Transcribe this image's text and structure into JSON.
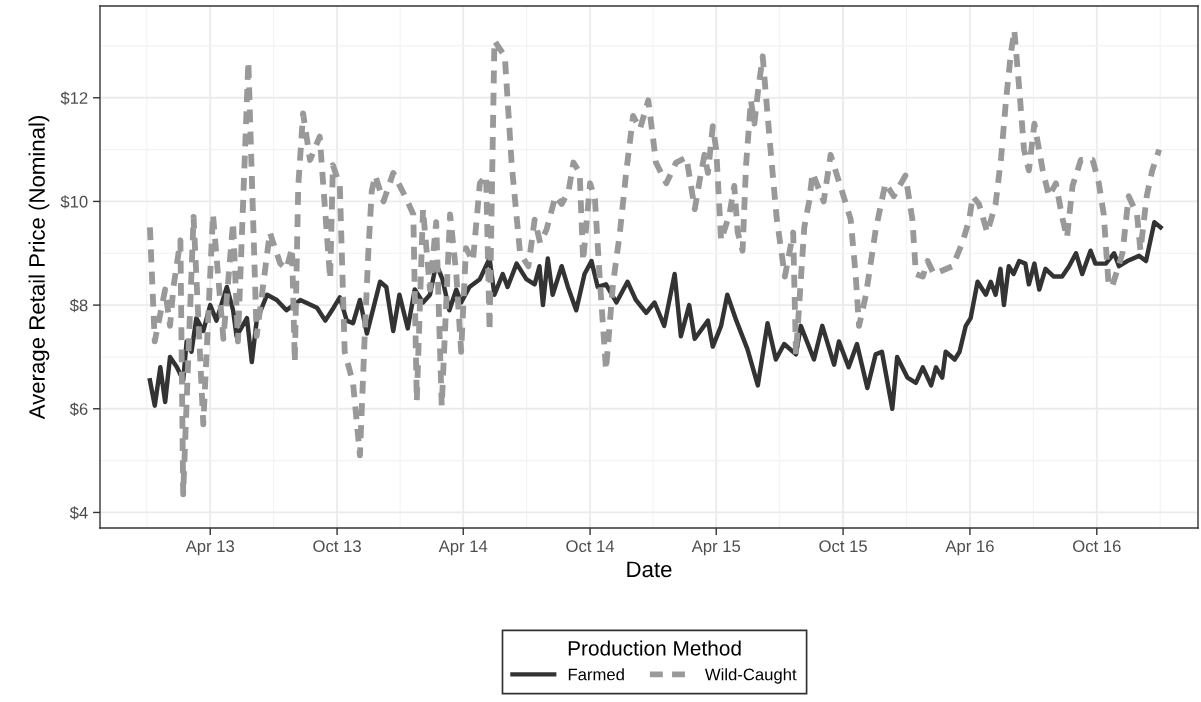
{
  "chart_data": {
    "type": "line",
    "xlabel": "Date",
    "ylabel": "Average Retail Price (Nominal)",
    "legend_title": "Production Method",
    "legend": "bottom",
    "grid": true,
    "xlim": [
      "2012-10-24",
      "2017-02-24"
    ],
    "xticks": [
      {
        "value": "2013-04-01",
        "label": "Apr 13"
      },
      {
        "value": "2013-10-01",
        "label": "Oct 13"
      },
      {
        "value": "2014-04-01",
        "label": "Apr 14"
      },
      {
        "value": "2014-10-01",
        "label": "Oct 14"
      },
      {
        "value": "2015-04-01",
        "label": "Apr 15"
      },
      {
        "value": "2015-10-01",
        "label": "Oct 15"
      },
      {
        "value": "2016-04-01",
        "label": "Apr 16"
      },
      {
        "value": "2016-10-01",
        "label": "Oct 16"
      }
    ],
    "ylim": [
      3.7,
      13.77
    ],
    "yticks": [
      {
        "value": 4,
        "label": "$4"
      },
      {
        "value": 6,
        "label": "$6"
      },
      {
        "value": 8,
        "label": "$8"
      },
      {
        "value": 10,
        "label": "$10"
      },
      {
        "value": 12,
        "label": "$12"
      }
    ],
    "series": [
      {
        "name": "Farmed",
        "color": "#333333",
        "line_style": "solid",
        "x": [
          "2013-01-04",
          "2013-01-11",
          "2013-01-19",
          "2013-01-26",
          "2013-02-02",
          "2013-02-12",
          "2013-02-21",
          "2013-02-26",
          "2013-03-05",
          "2013-03-12",
          "2013-03-22",
          "2013-04-01",
          "2013-04-10",
          "2013-04-25",
          "2013-05-04",
          "2013-05-09",
          "2013-05-24",
          "2013-05-31",
          "2013-06-07",
          "2013-06-22",
          "2013-07-06",
          "2013-07-20",
          "2013-08-09",
          "2013-09-02",
          "2013-09-14",
          "2013-09-26",
          "2013-10-05",
          "2013-10-15",
          "2013-10-24",
          "2013-11-03",
          "2013-11-13",
          "2013-12-02",
          "2013-12-11",
          "2013-12-21",
          "2013-12-30",
          "2014-01-11",
          "2014-01-21",
          "2014-02-02",
          "2014-02-12",
          "2014-02-21",
          "2014-03-02",
          "2014-03-12",
          "2014-03-22",
          "2014-03-29",
          "2014-04-10",
          "2014-04-25",
          "2014-05-09",
          "2014-05-16",
          "2014-05-28",
          "2014-06-04",
          "2014-06-17",
          "2014-07-01",
          "2014-07-13",
          "2014-07-20",
          "2014-07-25",
          "2014-08-01",
          "2014-08-08",
          "2014-08-21",
          "2014-08-30",
          "2014-09-11",
          "2014-09-23",
          "2014-10-03",
          "2014-10-12",
          "2014-10-24",
          "2014-11-08",
          "2014-11-24",
          "2014-12-06",
          "2014-12-21",
          "2015-01-02",
          "2015-01-16",
          "2015-01-31",
          "2015-02-09",
          "2015-02-21",
          "2015-03-01",
          "2015-03-20",
          "2015-03-27",
          "2015-04-08",
          "2015-04-17",
          "2015-04-30",
          "2015-05-16",
          "2015-05-31",
          "2015-06-14",
          "2015-06-26",
          "2015-07-08",
          "2015-07-25",
          "2015-08-01",
          "2015-08-20",
          "2015-09-01",
          "2015-09-18",
          "2015-09-25",
          "2015-10-09",
          "2015-10-21",
          "2015-11-05",
          "2015-11-17",
          "2015-11-26",
          "2015-12-11",
          "2015-12-18",
          "2016-01-02",
          "2016-01-14",
          "2016-01-24",
          "2016-02-05",
          "2016-02-12",
          "2016-02-21",
          "2016-02-26",
          "2016-03-10",
          "2016-03-17",
          "2016-03-26",
          "2016-04-02",
          "2016-04-12",
          "2016-04-24",
          "2016-05-01",
          "2016-05-08",
          "2016-05-15",
          "2016-05-20",
          "2016-05-27",
          "2016-06-03",
          "2016-06-11",
          "2016-06-20",
          "2016-06-25",
          "2016-07-03",
          "2016-07-10",
          "2016-07-19",
          "2016-07-31",
          "2016-08-12",
          "2016-08-22",
          "2016-09-01",
          "2016-09-10",
          "2016-09-22",
          "2016-09-29",
          "2016-10-14",
          "2016-10-26",
          "2016-11-02",
          "2016-11-14",
          "2016-12-01",
          "2016-12-11",
          "2016-12-23",
          "2017-01-01"
        ],
        "values": [
          6.55,
          6.06,
          6.8,
          6.13,
          7.0,
          6.8,
          6.55,
          7.3,
          7.1,
          7.75,
          7.5,
          8.0,
          7.7,
          8.35,
          7.9,
          7.4,
          7.75,
          6.9,
          7.7,
          8.2,
          8.1,
          7.9,
          8.1,
          7.95,
          7.7,
          7.95,
          8.15,
          7.7,
          7.65,
          8.1,
          7.45,
          8.45,
          8.35,
          7.5,
          8.2,
          7.55,
          8.3,
          8.05,
          8.2,
          8.8,
          8.5,
          7.9,
          8.3,
          8.05,
          8.35,
          8.5,
          8.9,
          8.2,
          8.6,
          8.35,
          8.8,
          8.5,
          8.4,
          8.75,
          8.0,
          8.9,
          8.2,
          8.75,
          8.35,
          7.9,
          8.6,
          8.85,
          8.35,
          8.4,
          8.05,
          8.45,
          8.1,
          7.85,
          8.05,
          7.6,
          8.6,
          7.4,
          8.0,
          7.35,
          7.7,
          7.2,
          7.6,
          8.2,
          7.7,
          7.15,
          6.45,
          7.65,
          6.95,
          7.25,
          7.05,
          7.6,
          6.95,
          7.6,
          6.85,
          7.3,
          6.8,
          7.25,
          6.4,
          7.05,
          7.1,
          6.0,
          7.0,
          6.6,
          6.5,
          6.8,
          6.45,
          6.8,
          6.6,
          7.1,
          6.95,
          7.1,
          7.6,
          7.75,
          8.45,
          8.2,
          8.45,
          8.2,
          8.7,
          8.0,
          8.75,
          8.6,
          8.85,
          8.8,
          8.4,
          8.8,
          8.3,
          8.7,
          8.55,
          8.55,
          8.75,
          9.0,
          8.6,
          9.05,
          8.8,
          8.8,
          9.0,
          8.75,
          8.85,
          8.95,
          8.85,
          9.6,
          9.5
        ]
      },
      {
        "name": "Wild-Caught",
        "color": "#999999",
        "line_style": "dashed",
        "x": [
          "2013-01-04",
          "2013-01-11",
          "2013-01-26",
          "2013-02-02",
          "2013-02-07",
          "2013-02-17",
          "2013-02-21",
          "2013-03-08",
          "2013-03-22",
          "2013-04-05",
          "2013-04-20",
          "2013-05-04",
          "2013-05-11",
          "2013-05-26",
          "2013-06-07",
          "2013-06-26",
          "2013-07-11",
          "2013-07-20",
          "2013-07-28",
          "2013-08-01",
          "2013-08-06",
          "2013-08-13",
          "2013-08-23",
          "2013-09-06",
          "2013-09-21",
          "2013-09-25",
          "2013-10-05",
          "2013-10-12",
          "2013-10-24",
          "2013-11-03",
          "2013-11-10",
          "2013-11-15",
          "2013-11-20",
          "2013-11-25",
          "2013-12-07",
          "2013-12-21",
          "2014-01-09",
          "2014-01-19",
          "2014-01-24",
          "2014-02-02",
          "2014-02-12",
          "2014-02-21",
          "2014-03-01",
          "2014-03-13",
          "2014-03-22",
          "2014-03-29",
          "2014-04-05",
          "2014-04-15",
          "2014-04-25",
          "2014-05-04",
          "2014-05-09",
          "2014-05-16",
          "2014-05-31",
          "2014-06-10",
          "2014-06-22",
          "2014-07-04",
          "2014-07-13",
          "2014-07-21",
          "2014-07-30",
          "2014-08-12",
          "2014-08-21",
          "2014-08-31",
          "2014-09-07",
          "2014-09-16",
          "2014-09-21",
          "2014-10-01",
          "2014-10-08",
          "2014-10-15",
          "2014-10-24",
          "2014-11-03",
          "2014-11-13",
          "2014-11-22",
          "2014-12-02",
          "2014-12-12",
          "2014-12-24",
          "2014-12-31",
          "2015-01-04",
          "2015-01-19",
          "2015-02-02",
          "2015-02-17",
          "2015-03-01",
          "2015-03-08",
          "2015-03-15",
          "2015-03-20",
          "2015-03-27",
          "2015-04-01",
          "2015-04-08",
          "2015-04-20",
          "2015-04-27",
          "2015-05-02",
          "2015-05-09",
          "2015-05-14",
          "2015-05-21",
          "2015-05-26",
          "2015-05-31",
          "2015-06-07",
          "2015-06-17",
          "2015-06-27",
          "2015-07-09",
          "2015-07-21",
          "2015-07-25",
          "2015-08-06",
          "2015-08-13",
          "2015-08-18",
          "2015-09-03",
          "2015-09-13",
          "2015-09-27",
          "2015-10-12",
          "2015-10-19",
          "2015-10-24",
          "2015-11-03",
          "2015-11-17",
          "2015-12-01",
          "2015-12-13",
          "2015-12-30",
          "2016-01-09",
          "2016-01-14",
          "2016-01-24",
          "2016-01-31",
          "2016-02-09",
          "2016-03-07",
          "2016-03-21",
          "2016-03-31",
          "2016-04-05",
          "2016-04-14",
          "2016-04-26",
          "2016-05-08",
          "2016-05-16",
          "2016-05-23",
          "2016-05-30",
          "2016-06-04",
          "2016-06-11",
          "2016-06-18",
          "2016-06-25",
          "2016-07-03",
          "2016-07-15",
          "2016-07-24",
          "2016-08-03",
          "2016-08-12",
          "2016-08-19",
          "2016-08-27",
          "2016-09-08",
          "2016-09-25",
          "2016-10-04",
          "2016-10-11",
          "2016-10-18",
          "2016-10-23",
          "2016-11-07",
          "2016-11-16",
          "2016-11-28",
          "2016-12-03",
          "2016-12-12",
          "2016-12-20",
          "2016-12-30"
        ],
        "values": [
          9.5,
          7.3,
          8.3,
          7.6,
          8.35,
          9.25,
          4.35,
          9.7,
          5.7,
          9.75,
          7.35,
          9.6,
          7.3,
          12.7,
          7.4,
          9.4,
          8.8,
          8.7,
          9.1,
          6.9,
          10.3,
          11.7,
          10.8,
          11.25,
          8.5,
          10.7,
          10.3,
          7.1,
          6.5,
          5.1,
          7.45,
          9.0,
          10.2,
          10.5,
          10.0,
          10.55,
          10.05,
          9.75,
          6.15,
          9.85,
          8.3,
          9.6,
          6.05,
          9.75,
          8.6,
          7.1,
          9.1,
          8.85,
          10.35,
          10.5,
          7.5,
          13.1,
          12.8,
          10.7,
          9.0,
          8.75,
          9.65,
          9.2,
          9.45,
          10.1,
          9.95,
          10.2,
          10.75,
          10.55,
          8.85,
          10.35,
          10.05,
          8.5,
          6.75,
          8.4,
          9.4,
          10.55,
          11.65,
          11.4,
          11.95,
          11.2,
          10.75,
          10.35,
          10.75,
          10.85,
          9.85,
          10.4,
          10.9,
          10.55,
          11.45,
          11.0,
          9.25,
          9.75,
          10.3,
          9.4,
          9.05,
          10.7,
          11.95,
          11.5,
          12.1,
          12.8,
          11.2,
          9.7,
          8.55,
          9.4,
          7.05,
          9.5,
          10.0,
          10.55,
          10.0,
          10.9,
          10.3,
          9.65,
          8.6,
          7.6,
          8.2,
          9.45,
          10.35,
          10.1,
          10.5,
          9.65,
          8.6,
          8.55,
          8.85,
          8.6,
          8.75,
          9.2,
          9.65,
          10.1,
          9.95,
          9.4,
          9.95,
          10.85,
          11.95,
          12.85,
          13.3,
          12.2,
          11.0,
          10.6,
          11.5,
          10.6,
          10.1,
          10.35,
          9.7,
          9.3,
          10.3,
          10.8,
          10.8,
          10.35,
          9.75,
          8.4,
          8.35,
          9.0,
          10.1,
          9.75,
          9.05,
          10.1,
          10.6,
          11.0
        ]
      }
    ]
  }
}
